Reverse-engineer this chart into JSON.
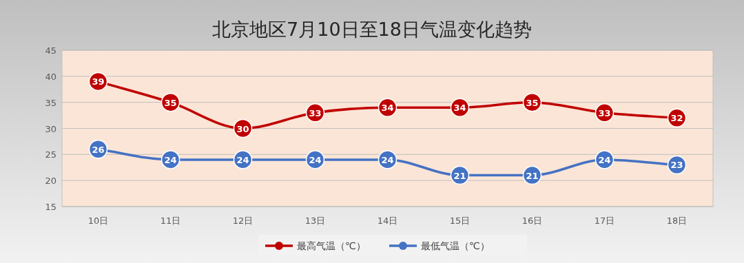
{
  "chart_data": {
    "type": "line",
    "title": "北京地区7月10日至18日气温变化趋势",
    "categories": [
      "10日",
      "11日",
      "12日",
      "13日",
      "14日",
      "15日",
      "16日",
      "17日",
      "18日"
    ],
    "series": [
      {
        "name": "最高气温（℃）",
        "color": "#c00000",
        "values": [
          39,
          35,
          30,
          33,
          34,
          34,
          35,
          33,
          32
        ]
      },
      {
        "name": "最低气温（℃）",
        "color": "#4472c4",
        "values": [
          26,
          24,
          24,
          24,
          24,
          21,
          21,
          24,
          23
        ]
      }
    ],
    "ylim": [
      15,
      45
    ],
    "yticks": [
      15,
      20,
      25,
      30,
      35,
      40,
      45
    ],
    "grid": "y",
    "legend": "bottom",
    "marker": "circle",
    "line_style": "solid",
    "data_labels": true
  }
}
